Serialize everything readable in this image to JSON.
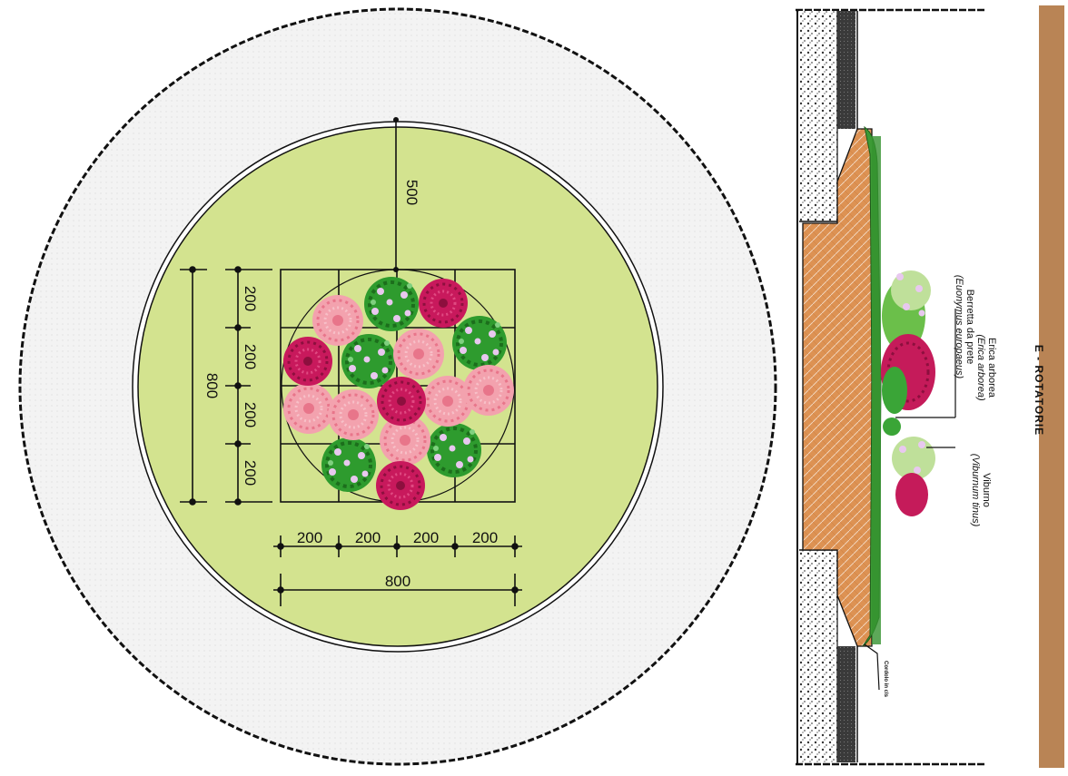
{
  "colors": {
    "outer_ring": "#efefef",
    "lawn": "#d3e38f",
    "soil": "#d9894a",
    "sidebar": "#b98455",
    "heather_pink": "#f08fa0",
    "euonymus_magenta": "#c51b5a",
    "viburnum_green": "#2f9a2f",
    "grass_green": "#3c9a35"
  },
  "plan": {
    "dim_vertical_top": "500",
    "dim_total_vertical": "800",
    "dim_total_horizontal": "800",
    "dim_segments_vertical": [
      "200",
      "200",
      "200",
      "200"
    ],
    "dim_segments_horizontal": [
      "200",
      "200",
      "200",
      "200"
    ]
  },
  "section": {
    "label_erica": "Erica arborea",
    "label_erica_latin": "(Erica arborea)",
    "label_berretta": "Berretta da prete",
    "label_berretta_latin": "(Euonymus europaeus)",
    "label_viburno": "Viburno",
    "label_viburno_latin": "(Viburnum tinus)",
    "small_label": "Cordolo in cls"
  },
  "sidebar": {
    "title": "E - ROTATORIE"
  },
  "icons": {
    "heather": "pink-shrub-icon",
    "euonymus": "magenta-shrub-icon",
    "viburnum": "green-flowering-shrub-icon"
  }
}
